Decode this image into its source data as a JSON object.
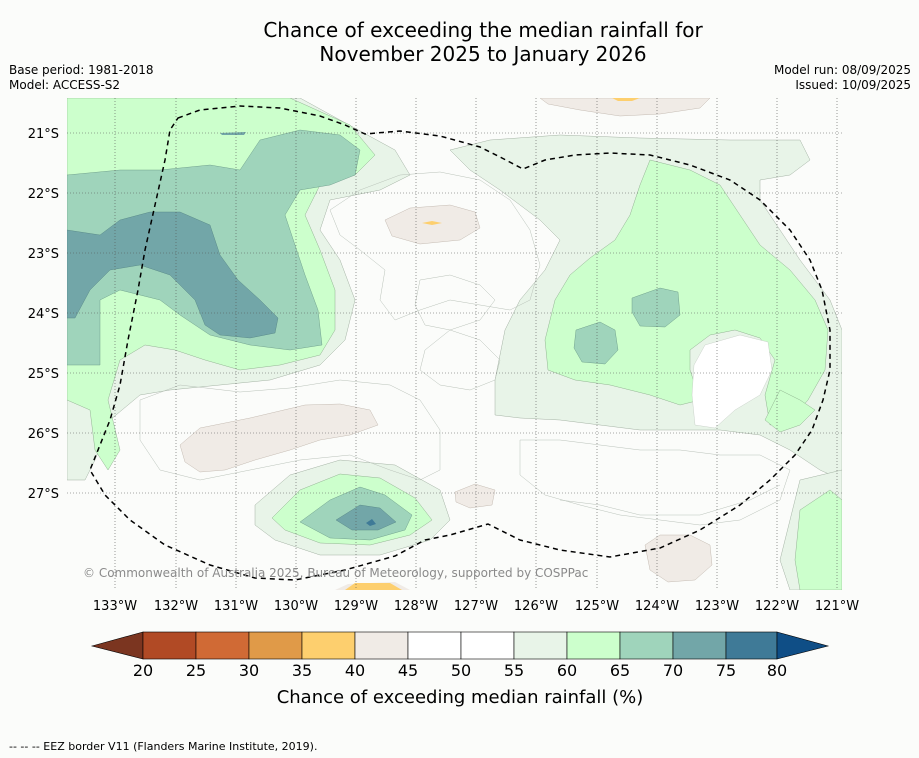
{
  "title": {
    "line1": "Chance of exceeding the median rainfall for",
    "line2": "November 2025 to January 2026"
  },
  "meta_left": {
    "base_period": "Base period: 1981-2018",
    "model": "Model: ACCESS-S2"
  },
  "meta_right": {
    "model_run": "Model run: 08/09/2025",
    "issued": "Issued: 10/09/2025"
  },
  "map": {
    "latitude_labels": [
      "21°S",
      "22°S",
      "23°S",
      "24°S",
      "25°S",
      "26°S",
      "27°S"
    ],
    "longitude_labels": [
      "133°W",
      "132°W",
      "131°W",
      "130°W",
      "129°W",
      "128°W",
      "127°W",
      "126°W",
      "125°W",
      "124°W",
      "123°W",
      "122°W",
      "121°W"
    ],
    "copyright": "© Commonwealth of Australia 2025, Bureau of Meteorology, supported by COSPPac"
  },
  "colorbar": {
    "ticks": [
      "20",
      "25",
      "30",
      "35",
      "40",
      "45",
      "50",
      "55",
      "60",
      "65",
      "70",
      "75",
      "80"
    ],
    "colors": [
      "#7b3520",
      "#b14a25",
      "#d06a35",
      "#e09a48",
      "#fdcf6e",
      "#f0ebe6",
      "#ffffff",
      "#ffffff",
      "#e8f4e8",
      "#ccffcc",
      "#9fd4bb",
      "#72a6a8",
      "#3f7a97",
      "#0f4e86"
    ],
    "label": "Chance of exceeding median rainfall (%)"
  },
  "footer": "--  --  -- EEZ border V11 (Flanders Marine Institute, 2019)."
}
